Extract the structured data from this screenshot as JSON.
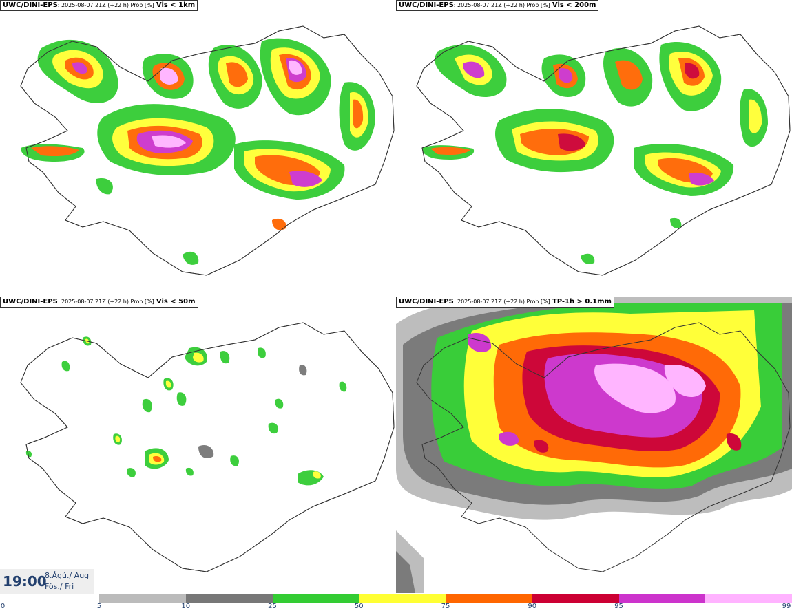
{
  "panels": [
    {
      "model": "UWC/DINI-EPS",
      "meta": ": 2025-08-07 21Z (+22 h) Prob [%]",
      "variable": "Vis < 1km"
    },
    {
      "model": "UWC/DINI-EPS",
      "meta": ": 2025-08-07 21Z (+22 h) Prob [%]",
      "variable": "Vis < 200m"
    },
    {
      "model": "UWC/DINI-EPS",
      "meta": ": 2025-08-07 21Z (+22 h) Prob [%]",
      "variable": "Vis < 50m"
    },
    {
      "model": "UWC/DINI-EPS",
      "meta": ": 2025-08-07 21Z (+22 h) Prob [%]",
      "variable": "TP-1h > 0.1mm"
    }
  ],
  "valid_time": {
    "time": "19:00",
    "date_line1": "8.Ágú./ Aug",
    "date_line2": "Fös./ Fri"
  },
  "colorbar": {
    "colors": [
      "#bbbbbb",
      "#777777",
      "#33cc33",
      "#ffff33",
      "#ff6600",
      "#cc0033",
      "#cc33cc",
      "#ffb3ff"
    ],
    "tick_labels": [
      "0",
      "5",
      "10",
      "25",
      "50",
      "75",
      "90",
      "95",
      "99"
    ]
  },
  "colors": {
    "coast": "#333333",
    "land_bg": "#ffffff",
    "label_text": "#23406e"
  }
}
